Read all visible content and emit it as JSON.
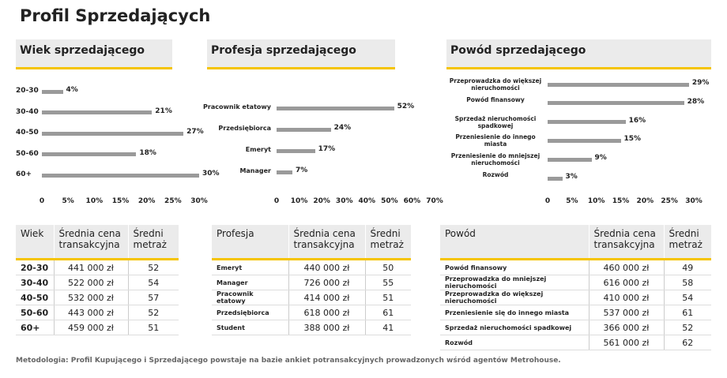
{
  "title": "Profil Sprzedających",
  "chart_data": [
    {
      "type": "bar",
      "title": "Wiek sprzedającego",
      "categories": [
        "20-30",
        "30-40",
        "40-50",
        "50-60",
        "60+"
      ],
      "values": [
        4,
        21,
        27,
        18,
        30
      ],
      "value_labels": [
        "4%",
        "21%",
        "27%",
        "18%",
        "30%"
      ],
      "color": "#9a9a9a",
      "xlim": [
        0,
        30
      ],
      "xticks": [
        0,
        {
          "value": 5,
          "label": "5%"
        },
        {
          "value": 10,
          "label": "10%"
        },
        {
          "value": 15,
          "label": "15%"
        },
        {
          "value": 20,
          "label": "20%"
        },
        {
          "value": 25,
          "label": "25%"
        },
        {
          "value": 30,
          "label": "30%"
        }
      ]
    },
    {
      "type": "bar",
      "title": "Profesja sprzedającego",
      "categories": [
        "Pracownik etatowy",
        "Przedsiębiorca",
        "Emeryt",
        "Manager"
      ],
      "values": [
        52,
        24,
        17,
        7
      ],
      "value_labels": [
        "52%",
        "24%",
        "17%",
        "7%"
      ],
      "color": "#9a9a9a",
      "xlim": [
        0,
        70
      ],
      "xticks": [
        0,
        {
          "value": 10,
          "label": "10%"
        },
        {
          "value": 20,
          "label": "20%"
        },
        {
          "value": 30,
          "label": "30%"
        },
        {
          "value": 40,
          "label": "40%"
        },
        {
          "value": 50,
          "label": "50%"
        },
        {
          "value": 60,
          "label": "60%"
        },
        {
          "value": 70,
          "label": "70%"
        }
      ]
    },
    {
      "type": "bar",
      "title": "Powód sprzedającego",
      "categories": [
        "Przeprowadzka do większej nieruchomości",
        "Powód finansowy",
        "Sprzedaż nieruchomości spadkowej",
        "Przeniesienie do innego miasta",
        "Przeniesienie do mniejszej nieruchomości",
        "Rozwód"
      ],
      "values": [
        29,
        28,
        16,
        15,
        9,
        3
      ],
      "value_labels": [
        "29%",
        "28%",
        "16%",
        "15%",
        "9%",
        "3%"
      ],
      "color": "#9a9a9a",
      "xlim": [
        0,
        30
      ],
      "xticks": [
        0,
        {
          "value": 5,
          "label": "5%"
        },
        {
          "value": 10,
          "label": "10%"
        },
        {
          "value": 15,
          "label": "15%"
        },
        {
          "value": 20,
          "label": "20%"
        },
        {
          "value": 25,
          "label": "25%"
        },
        {
          "value": 30,
          "label": "30%"
        }
      ]
    }
  ],
  "tables": [
    {
      "headers": [
        "Wiek",
        "Średnia cena transakcyjna",
        "Średni metraż"
      ],
      "rows": [
        [
          "20-30",
          "441 000 zł",
          52
        ],
        [
          "30-40",
          "522 000 zł",
          54
        ],
        [
          "40-50",
          "532 000 zł",
          57
        ],
        [
          "50-60",
          "443 000 zł",
          52
        ],
        [
          "60+",
          "459 000 zł",
          51
        ]
      ]
    },
    {
      "headers": [
        "Profesja",
        "Średnia cena transakcyjna",
        "Średni metraż"
      ],
      "rows": [
        [
          "Emeryt",
          "440 000 zł",
          50
        ],
        [
          "Manager",
          "726 000 zł",
          55
        ],
        [
          "Pracownik etatowy",
          "414 000 zł",
          51
        ],
        [
          "Przedsiębiorca",
          "618 000 zł",
          61
        ],
        [
          "Student",
          "388 000 zł",
          41
        ]
      ]
    },
    {
      "headers": [
        "Powód",
        "Średnia cena transakcyjna",
        "Średni metraż"
      ],
      "rows": [
        [
          "Powód finansowy",
          "460 000 zł",
          49
        ],
        [
          "Przeprowadzka do mniejszej nieruchomości",
          "616 000 zł",
          58
        ],
        [
          "Przeprowadzka do większej nieruchomości",
          "410 000 zł",
          54
        ],
        [
          "Przeniesienie się do innego miasta",
          "537 000 zł",
          61
        ],
        [
          "Sprzedaż nieruchomości spadkowej",
          "366 000 zł",
          52
        ],
        [
          "Rozwód",
          "561 000 zł",
          62
        ]
      ]
    }
  ],
  "footnote": "Metodologia: Profil Kupującego i Sprzedającego powstaje na bazie ankiet potransakcyjnych prowadzonych wśród agentów Metrohouse."
}
